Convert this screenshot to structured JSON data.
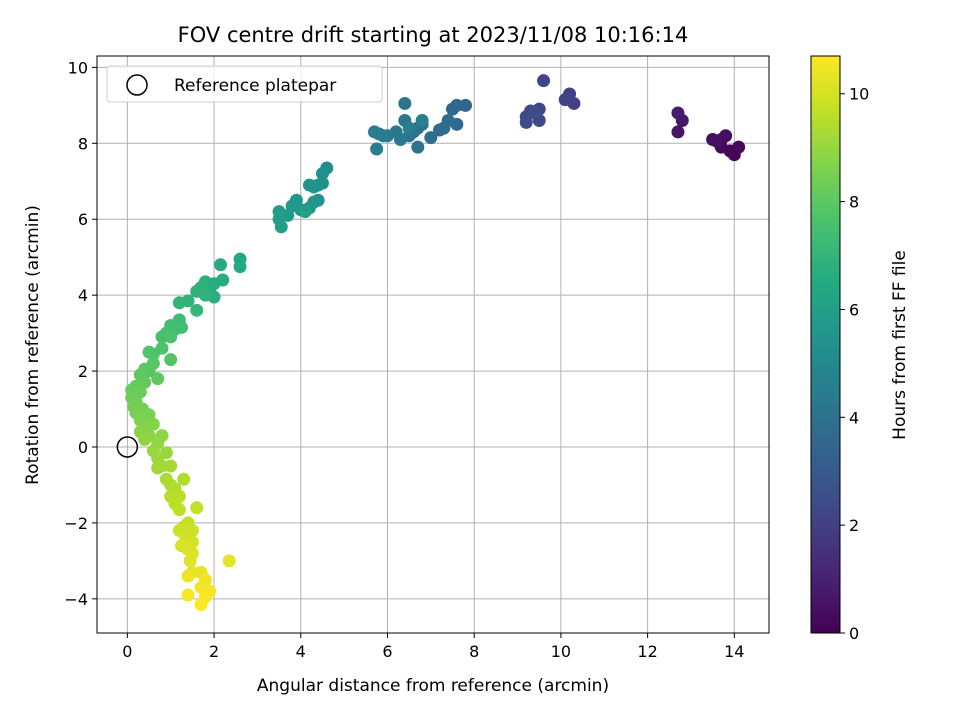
{
  "chart_data": {
    "type": "scatter",
    "title": "FOV centre drift starting at 2023/11/08 10:16:14",
    "xlabel": "Angular distance from reference (arcmin)",
    "ylabel": "Rotation from reference (arcmin)",
    "xlim": [
      -0.7,
      14.8
    ],
    "ylim": [
      -4.9,
      10.3
    ],
    "xticks": [
      0,
      2,
      4,
      6,
      8,
      10,
      12,
      14
    ],
    "yticks": [
      -4,
      -2,
      0,
      2,
      4,
      6,
      8,
      10
    ],
    "grid": true,
    "colorbar": {
      "label": "Hours from first FF file",
      "range": [
        0,
        10.7
      ],
      "ticks": [
        0,
        2,
        4,
        6,
        8,
        10
      ],
      "colormap": "viridis"
    },
    "legend": {
      "position": "top-left",
      "entries": [
        "Reference platepar"
      ]
    },
    "reference_point": {
      "x": 0,
      "y": 0
    },
    "points": [
      {
        "x": 14.0,
        "y": 7.7,
        "t": 0.1
      },
      {
        "x": 13.9,
        "y": 7.8,
        "t": 0.15
      },
      {
        "x": 13.7,
        "y": 7.9,
        "t": 0.2
      },
      {
        "x": 14.1,
        "y": 7.9,
        "t": 0.25
      },
      {
        "x": 13.7,
        "y": 8.1,
        "t": 0.3
      },
      {
        "x": 13.5,
        "y": 8.1,
        "t": 0.35
      },
      {
        "x": 13.8,
        "y": 8.2,
        "t": 0.4
      },
      {
        "x": 13.6,
        "y": 8.05,
        "t": 0.45
      },
      {
        "x": 12.7,
        "y": 8.3,
        "t": 0.6
      },
      {
        "x": 12.8,
        "y": 8.6,
        "t": 0.7
      },
      {
        "x": 12.7,
        "y": 8.8,
        "t": 0.8
      },
      {
        "x": 10.3,
        "y": 9.05,
        "t": 2.0
      },
      {
        "x": 10.2,
        "y": 9.3,
        "t": 2.05
      },
      {
        "x": 10.1,
        "y": 9.15,
        "t": 2.1
      },
      {
        "x": 9.6,
        "y": 9.65,
        "t": 2.2
      },
      {
        "x": 9.5,
        "y": 8.9,
        "t": 2.25
      },
      {
        "x": 9.5,
        "y": 8.6,
        "t": 2.3
      },
      {
        "x": 9.3,
        "y": 8.85,
        "t": 2.35
      },
      {
        "x": 9.2,
        "y": 8.7,
        "t": 2.4
      },
      {
        "x": 9.2,
        "y": 8.55,
        "t": 2.45
      },
      {
        "x": 9.4,
        "y": 8.8,
        "t": 2.5
      },
      {
        "x": 7.8,
        "y": 9.0,
        "t": 3.5
      },
      {
        "x": 7.6,
        "y": 9.0,
        "t": 3.55
      },
      {
        "x": 7.5,
        "y": 8.9,
        "t": 3.6
      },
      {
        "x": 7.6,
        "y": 8.5,
        "t": 3.65
      },
      {
        "x": 7.3,
        "y": 8.4,
        "t": 3.7
      },
      {
        "x": 7.2,
        "y": 8.35,
        "t": 3.75
      },
      {
        "x": 7.4,
        "y": 8.6,
        "t": 3.8
      },
      {
        "x": 7.0,
        "y": 8.15,
        "t": 3.85
      },
      {
        "x": 6.8,
        "y": 8.5,
        "t": 3.9
      },
      {
        "x": 6.7,
        "y": 8.4,
        "t": 3.95
      },
      {
        "x": 6.6,
        "y": 8.3,
        "t": 4.0
      },
      {
        "x": 6.7,
        "y": 7.9,
        "t": 4.05
      },
      {
        "x": 6.5,
        "y": 8.2,
        "t": 4.1
      },
      {
        "x": 6.4,
        "y": 8.6,
        "t": 4.15
      },
      {
        "x": 6.4,
        "y": 9.05,
        "t": 4.2
      },
      {
        "x": 6.3,
        "y": 8.1,
        "t": 4.25
      },
      {
        "x": 6.2,
        "y": 8.3,
        "t": 4.3
      },
      {
        "x": 6.0,
        "y": 8.2,
        "t": 4.35
      },
      {
        "x": 5.9,
        "y": 8.2,
        "t": 4.4
      },
      {
        "x": 5.8,
        "y": 8.25,
        "t": 4.45
      },
      {
        "x": 5.7,
        "y": 8.3,
        "t": 4.5
      },
      {
        "x": 5.75,
        "y": 7.85,
        "t": 4.55
      },
      {
        "x": 6.5,
        "y": 8.4,
        "t": 4.6
      },
      {
        "x": 6.8,
        "y": 8.6,
        "t": 4.65
      },
      {
        "x": 4.6,
        "y": 7.35,
        "t": 5.2
      },
      {
        "x": 4.5,
        "y": 7.2,
        "t": 5.25
      },
      {
        "x": 4.5,
        "y": 6.95,
        "t": 5.3
      },
      {
        "x": 4.4,
        "y": 6.9,
        "t": 5.35
      },
      {
        "x": 4.3,
        "y": 6.85,
        "t": 5.4
      },
      {
        "x": 4.2,
        "y": 6.9,
        "t": 5.45
      },
      {
        "x": 4.4,
        "y": 6.5,
        "t": 5.5
      },
      {
        "x": 4.3,
        "y": 6.45,
        "t": 5.55
      },
      {
        "x": 4.2,
        "y": 6.3,
        "t": 5.6
      },
      {
        "x": 4.0,
        "y": 6.25,
        "t": 5.65
      },
      {
        "x": 3.9,
        "y": 6.5,
        "t": 5.7
      },
      {
        "x": 3.8,
        "y": 6.35,
        "t": 5.75
      },
      {
        "x": 3.7,
        "y": 6.1,
        "t": 5.8
      },
      {
        "x": 3.5,
        "y": 6.2,
        "t": 5.85
      },
      {
        "x": 3.5,
        "y": 6.0,
        "t": 5.9
      },
      {
        "x": 3.55,
        "y": 5.8,
        "t": 5.95
      },
      {
        "x": 4.1,
        "y": 6.2,
        "t": 6.0
      },
      {
        "x": 2.6,
        "y": 4.95,
        "t": 6.4
      },
      {
        "x": 2.6,
        "y": 4.75,
        "t": 6.45
      },
      {
        "x": 2.15,
        "y": 4.8,
        "t": 6.5
      },
      {
        "x": 2.2,
        "y": 4.4,
        "t": 6.55
      },
      {
        "x": 2.0,
        "y": 4.3,
        "t": 6.6
      },
      {
        "x": 1.9,
        "y": 4.15,
        "t": 6.65
      },
      {
        "x": 2.0,
        "y": 3.95,
        "t": 6.7
      },
      {
        "x": 1.8,
        "y": 4.35,
        "t": 6.75
      },
      {
        "x": 1.7,
        "y": 4.2,
        "t": 6.8
      },
      {
        "x": 1.6,
        "y": 4.1,
        "t": 6.85
      },
      {
        "x": 1.8,
        "y": 4.0,
        "t": 6.9
      },
      {
        "x": 1.4,
        "y": 3.85,
        "t": 6.95
      },
      {
        "x": 1.2,
        "y": 3.8,
        "t": 7.0
      },
      {
        "x": 1.6,
        "y": 3.6,
        "t": 7.05
      },
      {
        "x": 1.2,
        "y": 3.35,
        "t": 7.3
      },
      {
        "x": 1.25,
        "y": 3.15,
        "t": 7.35
      },
      {
        "x": 1.1,
        "y": 3.1,
        "t": 7.4
      },
      {
        "x": 1.0,
        "y": 3.2,
        "t": 7.45
      },
      {
        "x": 0.9,
        "y": 3.0,
        "t": 7.5
      },
      {
        "x": 0.8,
        "y": 2.9,
        "t": 7.55
      },
      {
        "x": 1.0,
        "y": 2.9,
        "t": 7.6
      },
      {
        "x": 0.8,
        "y": 2.6,
        "t": 7.65
      },
      {
        "x": 0.6,
        "y": 2.45,
        "t": 7.7
      },
      {
        "x": 0.5,
        "y": 2.5,
        "t": 7.75
      },
      {
        "x": 1.0,
        "y": 2.3,
        "t": 7.8
      },
      {
        "x": 0.6,
        "y": 2.2,
        "t": 7.85
      },
      {
        "x": 0.5,
        "y": 2.0,
        "t": 7.9
      },
      {
        "x": 0.4,
        "y": 2.05,
        "t": 7.95
      },
      {
        "x": 0.3,
        "y": 1.9,
        "t": 8.0
      },
      {
        "x": 0.7,
        "y": 1.8,
        "t": 8.05
      },
      {
        "x": 0.4,
        "y": 1.7,
        "t": 8.1
      },
      {
        "x": 0.2,
        "y": 1.6,
        "t": 8.15
      },
      {
        "x": 0.1,
        "y": 1.5,
        "t": 8.2
      },
      {
        "x": 0.3,
        "y": 1.45,
        "t": 8.25
      },
      {
        "x": 0.1,
        "y": 1.3,
        "t": 8.3
      },
      {
        "x": 0.2,
        "y": 1.2,
        "t": 8.35
      },
      {
        "x": 0.15,
        "y": 1.05,
        "t": 8.4
      },
      {
        "x": 0.35,
        "y": 1.0,
        "t": 8.45
      },
      {
        "x": 0.2,
        "y": 0.9,
        "t": 8.5
      },
      {
        "x": 0.5,
        "y": 0.85,
        "t": 8.55
      },
      {
        "x": 0.3,
        "y": 0.7,
        "t": 8.6
      },
      {
        "x": 0.4,
        "y": 0.55,
        "t": 8.65
      },
      {
        "x": 0.6,
        "y": 0.6,
        "t": 8.7
      },
      {
        "x": 0.3,
        "y": 0.4,
        "t": 8.75
      },
      {
        "x": 0.5,
        "y": 0.3,
        "t": 8.8
      },
      {
        "x": 0.8,
        "y": 0.3,
        "t": 8.85
      },
      {
        "x": 0.4,
        "y": 0.2,
        "t": 8.9
      },
      {
        "x": 0.7,
        "y": 0.1,
        "t": 8.95
      },
      {
        "x": 0.6,
        "y": -0.1,
        "t": 9.0
      },
      {
        "x": 0.9,
        "y": -0.15,
        "t": 9.05
      },
      {
        "x": 0.7,
        "y": -0.3,
        "t": 9.1
      },
      {
        "x": 0.7,
        "y": -0.55,
        "t": 9.15
      },
      {
        "x": 0.8,
        "y": -0.5,
        "t": 9.2
      },
      {
        "x": 1.0,
        "y": -0.5,
        "t": 9.25
      },
      {
        "x": 0.9,
        "y": -0.85,
        "t": 9.3
      },
      {
        "x": 1.0,
        "y": -1.0,
        "t": 9.35
      },
      {
        "x": 1.3,
        "y": -0.85,
        "t": 9.4
      },
      {
        "x": 1.1,
        "y": -1.1,
        "t": 9.45
      },
      {
        "x": 1.0,
        "y": -1.3,
        "t": 9.5
      },
      {
        "x": 1.2,
        "y": -1.3,
        "t": 9.55
      },
      {
        "x": 1.1,
        "y": -1.5,
        "t": 9.6
      },
      {
        "x": 1.2,
        "y": -1.65,
        "t": 9.65
      },
      {
        "x": 1.6,
        "y": -1.6,
        "t": 9.7
      },
      {
        "x": 1.4,
        "y": -2.0,
        "t": 9.75
      },
      {
        "x": 1.3,
        "y": -2.1,
        "t": 9.8
      },
      {
        "x": 1.2,
        "y": -2.2,
        "t": 9.85
      },
      {
        "x": 1.5,
        "y": -2.2,
        "t": 9.9
      },
      {
        "x": 1.35,
        "y": -2.4,
        "t": 9.95
      },
      {
        "x": 1.5,
        "y": -2.5,
        "t": 10.0
      },
      {
        "x": 1.25,
        "y": -2.6,
        "t": 10.05
      },
      {
        "x": 1.4,
        "y": -2.7,
        "t": 10.1
      },
      {
        "x": 1.5,
        "y": -2.8,
        "t": 10.15
      },
      {
        "x": 1.45,
        "y": -3.0,
        "t": 10.2
      },
      {
        "x": 2.35,
        "y": -3.0,
        "t": 10.25
      },
      {
        "x": 1.5,
        "y": -3.3,
        "t": 10.3
      },
      {
        "x": 1.7,
        "y": -3.3,
        "t": 10.35
      },
      {
        "x": 1.4,
        "y": -3.4,
        "t": 10.4
      },
      {
        "x": 1.8,
        "y": -3.5,
        "t": 10.45
      },
      {
        "x": 1.7,
        "y": -3.7,
        "t": 10.5
      },
      {
        "x": 1.9,
        "y": -3.8,
        "t": 10.55
      },
      {
        "x": 1.4,
        "y": -3.9,
        "t": 10.6
      },
      {
        "x": 1.8,
        "y": -3.95,
        "t": 10.62
      },
      {
        "x": 1.7,
        "y": -4.15,
        "t": 10.65
      }
    ]
  }
}
